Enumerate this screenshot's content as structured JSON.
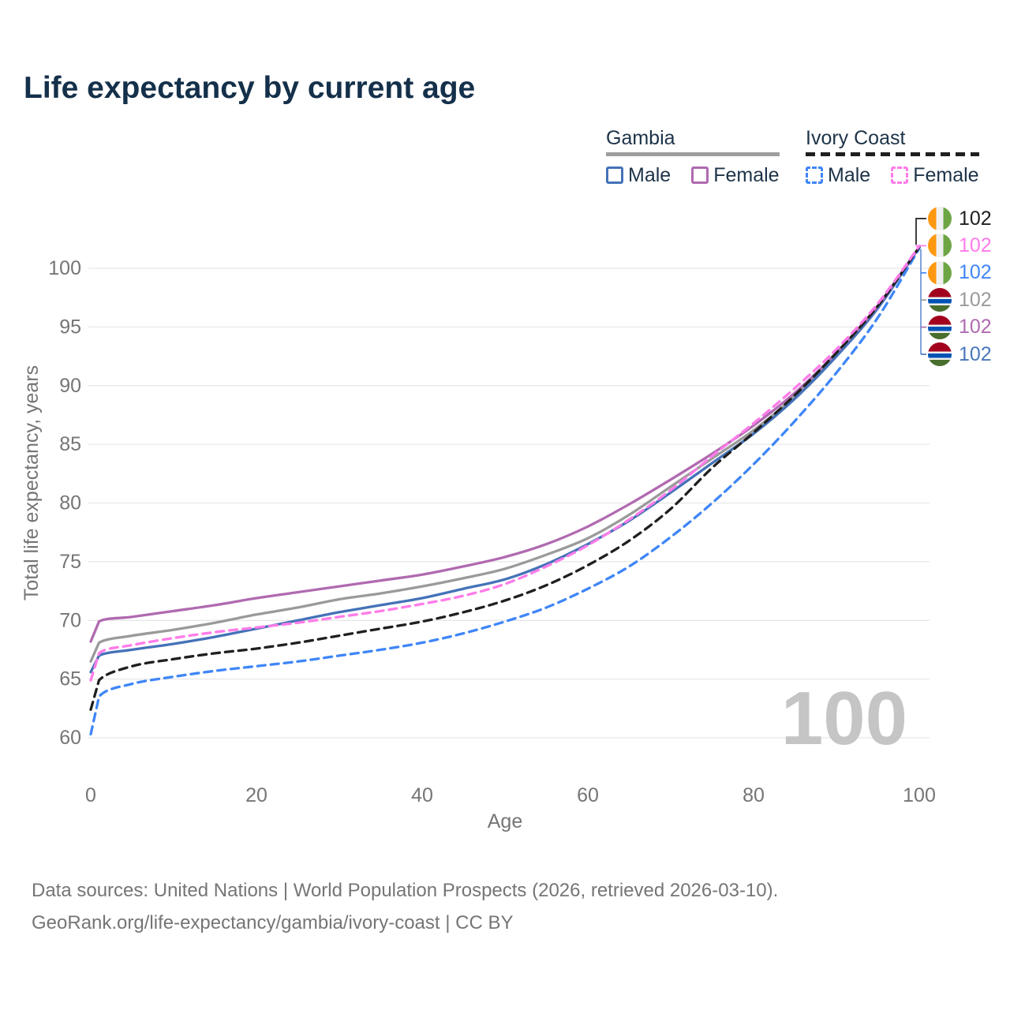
{
  "title": "Life expectancy by current age",
  "legend": {
    "gambia": {
      "title": "Gambia",
      "male_label": "Male",
      "female_label": "Female"
    },
    "ivory": {
      "title": "Ivory Coast",
      "male_label": "Male",
      "female_label": "Female"
    }
  },
  "footer": {
    "line1": "Data sources: United Nations | World Population Prospects (2026, retrieved 2026-03-10).",
    "line2": "GeoRank.org/life-expectancy/gambia/ivory-coast | CC BY"
  },
  "colors": {
    "title": "#14304a",
    "tick": "#757575",
    "grid": "#e7e7e7",
    "watermark": "#c5c5c5",
    "legend_text": "#1d3349",
    "connector_blue": "#6b93d6",
    "gambia_total": "#9a9a9a",
    "gambia_male": "#4472b8",
    "gambia_female": "#b06ab0",
    "ivory_total": "#1f1f1f",
    "ivory_male": "#3f86f7",
    "ivory_female": "#ff7ce9",
    "gambia_male_label": "#4a77bb",
    "flag_ivory_orange": "#FF9811",
    "flag_ivory_white": "#F0F0F0",
    "flag_ivory_green": "#6DA544",
    "flag_gambia_red": "#A2001D",
    "flag_gambia_blue": "#0052B4",
    "flag_gambia_green": "#496E2D",
    "flag_gambia_white": "#F0F0F0"
  },
  "chart_data": {
    "type": "line",
    "title": "Life expectancy by current age",
    "xlabel": "Age",
    "ylabel": "Total life expectancy, years",
    "x_ticks": [
      0,
      20,
      40,
      60,
      80,
      100
    ],
    "y_ticks": [
      60,
      65,
      70,
      75,
      80,
      85,
      90,
      95,
      100
    ],
    "xlim": [
      0,
      100
    ],
    "ylim": [
      60,
      100
    ],
    "grid": "horizontal-only",
    "legend_position": "top-right",
    "watermark_age_counter": "100",
    "x": [
      0,
      1,
      5,
      10,
      15,
      20,
      25,
      30,
      35,
      40,
      45,
      50,
      55,
      60,
      65,
      70,
      75,
      80,
      85,
      90,
      95,
      100
    ],
    "series": [
      {
        "id": "gambia-total",
        "name": "Gambia (both sexes)",
        "country": "Gambia",
        "sex": "Both",
        "line": "solid",
        "color_key": "gambia_total",
        "values": [
          66.5,
          68.1,
          68.7,
          69.2,
          69.8,
          70.5,
          71.1,
          71.8,
          72.3,
          72.9,
          73.6,
          74.4,
          75.6,
          77.0,
          79.0,
          81.4,
          83.8,
          86.2,
          89.1,
          92.6,
          96.7,
          101.8
        ]
      },
      {
        "id": "gambia-male",
        "name": "Gambia Male",
        "country": "Gambia",
        "sex": "Male",
        "line": "solid",
        "color_key": "gambia_male",
        "values": [
          65.6,
          67.0,
          67.5,
          68.0,
          68.6,
          69.3,
          70.0,
          70.7,
          71.3,
          71.9,
          72.7,
          73.5,
          74.8,
          76.5,
          78.5,
          80.9,
          83.4,
          85.9,
          88.9,
          92.5,
          96.6,
          101.8
        ]
      },
      {
        "id": "gambia-female",
        "name": "Gambia Female",
        "country": "Gambia",
        "sex": "Female",
        "line": "solid",
        "color_key": "gambia_female",
        "values": [
          68.2,
          69.9,
          70.3,
          70.8,
          71.3,
          71.9,
          72.4,
          72.9,
          73.4,
          73.9,
          74.6,
          75.4,
          76.5,
          78.0,
          79.9,
          82.0,
          84.2,
          86.6,
          89.4,
          92.8,
          96.8,
          101.8
        ]
      },
      {
        "id": "ivory-coast-male",
        "name": "Ivory Coast Male",
        "country": "Ivory Coast",
        "sex": "Male",
        "line": "dashed",
        "color_key": "ivory_male",
        "values": [
          60.3,
          63.5,
          64.6,
          65.2,
          65.7,
          66.1,
          66.5,
          67.0,
          67.5,
          68.1,
          68.9,
          69.9,
          71.1,
          72.7,
          74.6,
          77.1,
          80.0,
          83.3,
          87.0,
          91.1,
          95.8,
          101.7
        ]
      },
      {
        "id": "ivory-coast-total",
        "name": "Ivory Coast (both sexes)",
        "country": "Ivory Coast",
        "sex": "Both",
        "line": "dashed",
        "color_key": "ivory_total",
        "values": [
          62.4,
          64.9,
          66.1,
          66.7,
          67.2,
          67.6,
          68.1,
          68.7,
          69.3,
          69.9,
          70.7,
          71.7,
          73.0,
          74.7,
          76.8,
          79.5,
          83.0,
          86.0,
          89.2,
          92.8,
          96.8,
          101.8
        ]
      },
      {
        "id": "ivory-coast-female",
        "name": "Ivory Coast Female",
        "country": "Ivory Coast",
        "sex": "Female",
        "line": "dashed",
        "color_key": "ivory_female",
        "values": [
          64.9,
          67.2,
          67.9,
          68.5,
          69.0,
          69.4,
          69.8,
          70.3,
          70.8,
          71.4,
          72.1,
          73.1,
          74.6,
          76.4,
          78.6,
          81.1,
          84.0,
          86.8,
          89.8,
          93.1,
          97.0,
          101.9
        ]
      }
    ],
    "end_labels": [
      {
        "flag": "ivory-coast",
        "series": "ivory-coast-total",
        "value": "102",
        "color_key": "ivory_total"
      },
      {
        "flag": "ivory-coast",
        "series": "ivory-coast-female",
        "value": "102",
        "color_key": "ivory_female"
      },
      {
        "flag": "ivory-coast",
        "series": "ivory-coast-male",
        "value": "102",
        "color_key": "ivory_male"
      },
      {
        "flag": "gambia",
        "series": "gambia-total",
        "value": "102",
        "color_key": "gambia_total"
      },
      {
        "flag": "gambia",
        "series": "gambia-female",
        "value": "102",
        "color_key": "gambia_female"
      },
      {
        "flag": "gambia",
        "series": "gambia-male",
        "value": "102",
        "color_key": "gambia_male_label"
      }
    ]
  }
}
